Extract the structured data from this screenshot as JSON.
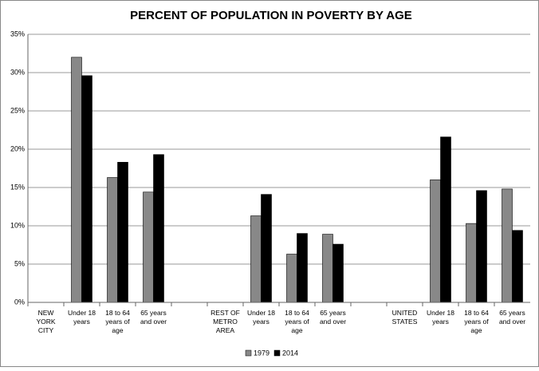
{
  "chart_data": {
    "type": "bar",
    "title": "PERCENT OF POPULATION IN POVERTY BY AGE",
    "categories": [
      "NEW YORK CITY",
      "Under 18 years",
      "18 to 64 years of age",
      "65 years and over",
      null,
      "REST OF METRO AREA",
      "Under 18 years",
      "18 to 64 years of age",
      "65 years and over",
      null,
      "UNITED STATES",
      "Under 18 years",
      "18 to 64 years of age",
      "65 years and over"
    ],
    "series": [
      {
        "name": "1979",
        "color": "#888888",
        "values": [
          null,
          32,
          16.3,
          14.4,
          null,
          null,
          11.3,
          6.3,
          8.9,
          null,
          null,
          16.0,
          10.3,
          14.8
        ]
      },
      {
        "name": "2014",
        "color": "#000000",
        "values": [
          null,
          29.6,
          18.3,
          19.3,
          null,
          null,
          14.1,
          9.0,
          7.6,
          null,
          null,
          21.6,
          14.6,
          9.4
        ]
      }
    ],
    "ylim": [
      0,
      35
    ],
    "yticks": [
      {
        "value": 0,
        "label": "0%"
      },
      {
        "value": 5,
        "label": "5%"
      },
      {
        "value": 10,
        "label": "10%"
      },
      {
        "value": 15,
        "label": "15%"
      },
      {
        "value": 20,
        "label": "20%"
      },
      {
        "value": 25,
        "label": "25%"
      },
      {
        "value": 30,
        "label": "30%"
      },
      {
        "value": 35,
        "label": "35%"
      }
    ],
    "grid": true,
    "legend": "bottom"
  }
}
